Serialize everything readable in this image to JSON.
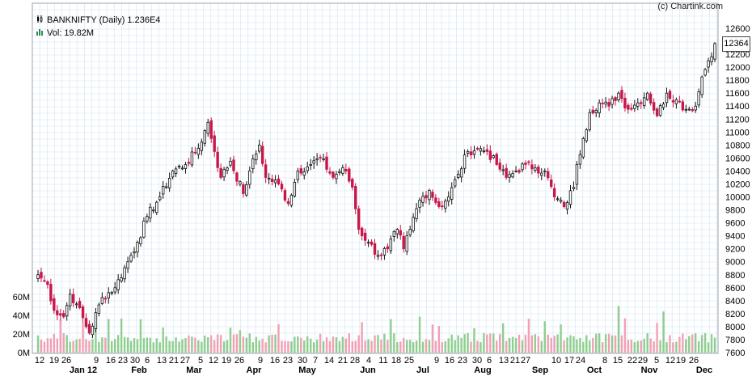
{
  "header": {
    "copyright": "(c) Chartink.com",
    "title": "BANKNIFTY (Daily) 1.236E4",
    "volume": "Vol: 19.82M",
    "last_price_tag": "12364"
  },
  "colors": {
    "up": "#111111",
    "down": "#c8174a",
    "vol_up": "#8fce8f",
    "vol_down": "#f3a0b4",
    "grid": "#cfe3f3",
    "background": "#ffffff"
  },
  "chart_data": {
    "type": "candlestick",
    "symbol": "BANKNIFTY",
    "interval": "Daily",
    "price_axis": {
      "ylim": [
        7600,
        12600
      ],
      "ticks": [
        7600,
        7800,
        8000,
        8200,
        8400,
        8600,
        8800,
        9000,
        9200,
        9400,
        9600,
        9800,
        10000,
        10200,
        10400,
        10600,
        10800,
        11000,
        11200,
        11400,
        11600,
        11800,
        12000,
        12200,
        12400,
        12600
      ]
    },
    "volume_axis": {
      "ylim": [
        0,
        60000000
      ],
      "tick_labels": [
        "0M",
        "20M",
        "40M",
        "60M"
      ]
    },
    "x_day_labels": [
      "12",
      "19",
      "26",
      "9",
      "16",
      "23",
      "30",
      "6",
      "13",
      "21",
      "27",
      "5",
      "12",
      "19",
      "26",
      "9",
      "16",
      "23",
      "30",
      "7",
      "14",
      "21",
      "28",
      "4",
      "11",
      "18",
      "25",
      "9",
      "16",
      "23",
      "30",
      "6",
      "13",
      "21",
      "27",
      "10",
      "17",
      "24",
      "8",
      "15",
      "22",
      "29",
      "5",
      "12",
      "19",
      "26"
    ],
    "x_month_labels": [
      "Jan 12",
      "Feb",
      "Mar",
      "Apr",
      "May",
      "Jun",
      "Jul",
      "Aug",
      "Sep",
      "Oct",
      "Nov",
      "Dec"
    ],
    "last_close": 12364,
    "close_waypoints": [
      [
        0,
        8800
      ],
      [
        3,
        8650
      ],
      [
        5,
        8250
      ],
      [
        8,
        8150
      ],
      [
        10,
        8500
      ],
      [
        12,
        8350
      ],
      [
        16,
        7900
      ],
      [
        20,
        8450
      ],
      [
        24,
        8600
      ],
      [
        28,
        9000
      ],
      [
        31,
        9300
      ],
      [
        34,
        9700
      ],
      [
        38,
        10000
      ],
      [
        42,
        10400
      ],
      [
        46,
        10500
      ],
      [
        50,
        10750
      ],
      [
        53,
        11150
      ],
      [
        55,
        10700
      ],
      [
        57,
        10300
      ],
      [
        60,
        10550
      ],
      [
        64,
        10050
      ],
      [
        66,
        10400
      ],
      [
        69,
        10800
      ],
      [
        71,
        10300
      ],
      [
        75,
        10200
      ],
      [
        78,
        9900
      ],
      [
        81,
        10400
      ],
      [
        85,
        10500
      ],
      [
        88,
        10600
      ],
      [
        92,
        10300
      ],
      [
        95,
        10450
      ],
      [
        98,
        10150
      ],
      [
        100,
        9500
      ],
      [
        103,
        9300
      ],
      [
        106,
        9100
      ],
      [
        109,
        9200
      ],
      [
        112,
        9500
      ],
      [
        114,
        9200
      ],
      [
        116,
        9500
      ],
      [
        119,
        9950
      ],
      [
        122,
        10100
      ],
      [
        125,
        9850
      ],
      [
        128,
        10000
      ],
      [
        131,
        10350
      ],
      [
        134,
        10700
      ],
      [
        137,
        10750
      ],
      [
        140,
        10700
      ],
      [
        143,
        10500
      ],
      [
        146,
        10300
      ],
      [
        149,
        10400
      ],
      [
        152,
        10500
      ],
      [
        155,
        10450
      ],
      [
        158,
        10400
      ],
      [
        161,
        10000
      ],
      [
        164,
        9850
      ],
      [
        167,
        10150
      ],
      [
        168,
        10500
      ],
      [
        170,
        10900
      ],
      [
        172,
        11300
      ],
      [
        175,
        11450
      ],
      [
        178,
        11400
      ],
      [
        181,
        11600
      ],
      [
        184,
        11350
      ],
      [
        187,
        11450
      ],
      [
        190,
        11600
      ],
      [
        193,
        11250
      ],
      [
        196,
        11600
      ],
      [
        199,
        11500
      ],
      [
        202,
        11350
      ],
      [
        205,
        11400
      ],
      [
        207,
        11850
      ],
      [
        209,
        12100
      ],
      [
        211,
        12364
      ]
    ]
  }
}
